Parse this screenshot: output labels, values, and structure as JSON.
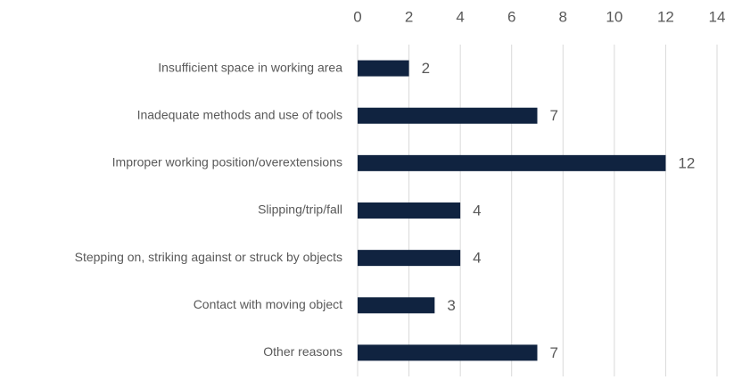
{
  "chart_data": {
    "type": "bar",
    "orientation": "horizontal",
    "categories": [
      "Insufficient space in working area",
      "Inadequate methods and use of tools",
      "Improper working position/overextensions",
      "Slipping/trip/fall",
      "Stepping on, striking against or struck by objects",
      "Contact with moving object",
      "Other reasons"
    ],
    "values": [
      2,
      7,
      12,
      4,
      4,
      3,
      7
    ],
    "color": "#102340",
    "xlim": [
      0,
      14
    ],
    "xticks": [
      0,
      2,
      4,
      6,
      8,
      10,
      12,
      14
    ],
    "grid": true,
    "data_labels": true
  }
}
